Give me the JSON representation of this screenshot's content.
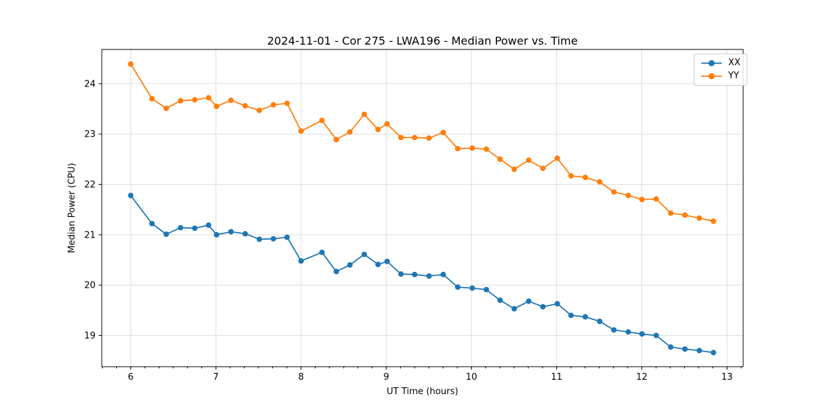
{
  "chart_data": {
    "type": "line",
    "title": "2024-11-01 - Cor 275 - LWA196 - Median Power vs. Time",
    "xlabel": "UT Time (hours)",
    "ylabel": "Median Power (CPU)",
    "xlim": [
      5.66,
      13.19
    ],
    "ylim": [
      18.38,
      24.68
    ],
    "x_ticks": [
      6,
      7,
      8,
      9,
      10,
      11,
      12,
      13
    ],
    "y_ticks": [
      19,
      20,
      21,
      22,
      23,
      24
    ],
    "x_minor_step": 0.1666667,
    "grid": "major-only",
    "legend_position": "upper right",
    "background_color": "#ffffff",
    "grid_color": "#dcdcdc",
    "spine_color": "#000000",
    "x": [
      6.0,
      6.25,
      6.417,
      6.585,
      6.752,
      6.914,
      7.008,
      7.177,
      7.344,
      7.51,
      7.675,
      7.836,
      8.0,
      8.245,
      8.414,
      8.573,
      8.742,
      8.903,
      9.01,
      9.172,
      9.333,
      9.502,
      9.669,
      9.839,
      10.01,
      10.175,
      10.336,
      10.502,
      10.672,
      10.839,
      11.008,
      11.169,
      11.336,
      11.505,
      11.672,
      11.841,
      12.002,
      12.169,
      12.339,
      12.506,
      12.675,
      12.841
    ],
    "series": [
      {
        "name": "XX",
        "color": "#1f77b4",
        "values": [
          21.78,
          21.22,
          21.01,
          21.14,
          21.13,
          21.19,
          21.0,
          21.06,
          21.02,
          20.91,
          20.92,
          20.95,
          20.48,
          20.65,
          20.27,
          20.4,
          20.61,
          20.41,
          20.47,
          20.22,
          20.21,
          20.18,
          20.21,
          19.96,
          19.94,
          19.91,
          19.7,
          19.53,
          19.68,
          19.57,
          19.63,
          19.4,
          19.37,
          19.28,
          19.11,
          19.07,
          19.03,
          19.0,
          18.77,
          18.73,
          18.7,
          18.66
        ]
      },
      {
        "name": "YY",
        "color": "#ff7f0e",
        "values": [
          24.39,
          23.7,
          23.51,
          23.66,
          23.68,
          23.72,
          23.55,
          23.67,
          23.56,
          23.47,
          23.58,
          23.61,
          23.06,
          23.27,
          22.89,
          23.04,
          23.39,
          23.09,
          23.2,
          22.93,
          22.93,
          22.92,
          23.03,
          22.71,
          22.72,
          22.7,
          22.5,
          22.3,
          22.48,
          22.32,
          22.52,
          22.17,
          22.14,
          22.05,
          21.85,
          21.78,
          21.7,
          21.71,
          21.43,
          21.39,
          21.33,
          21.27
        ]
      }
    ]
  }
}
